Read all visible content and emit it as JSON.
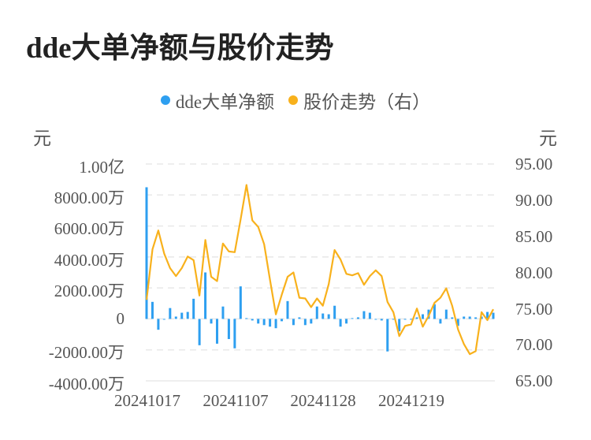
{
  "title": "dde大单净额与股价走势",
  "legend": [
    {
      "label": "dde大单净额",
      "color": "#2e9ff0"
    },
    {
      "label": "股价走势（右）",
      "color": "#f8b11c"
    }
  ],
  "axes": {
    "left_unit": "元",
    "right_unit": "元",
    "left_ticks": [
      "1.00亿",
      "8000.00万",
      "6000.00万",
      "4000.00万",
      "2000.00万",
      "0",
      "-2000.00万",
      "-4000.00万"
    ],
    "right_ticks": [
      "95.00",
      "90.00",
      "85.00",
      "80.00",
      "75.00",
      "70.00",
      "65.00"
    ],
    "x_ticks": [
      "20241017",
      "20241107",
      "20241128",
      "20241219"
    ]
  },
  "chart_data": {
    "type": "bar+line",
    "title": "dde大单净额与股价走势",
    "x_tick_labels": [
      "20241017",
      "20241107",
      "20241128",
      "20241219"
    ],
    "ylabel_left": "元",
    "ylabel_right": "元",
    "ylim_left": [
      -40000000,
      100000000
    ],
    "ylim_right": [
      65,
      95
    ],
    "grid": true,
    "legend_position": "top",
    "series": [
      {
        "name": "dde大单净额",
        "type": "bar",
        "axis": "left",
        "unit": "万元",
        "values": [
          8500,
          1100,
          -700,
          0,
          700,
          150,
          400,
          450,
          1300,
          -1700,
          3000,
          -300,
          -1600,
          800,
          -1300,
          -1900,
          2100,
          50,
          -100,
          -300,
          -400,
          -500,
          -600,
          -150,
          1150,
          -400,
          100,
          -400,
          -300,
          800,
          350,
          300,
          850,
          -500,
          -300,
          50,
          100,
          500,
          400,
          -50,
          -100,
          -2100,
          -50,
          -800,
          0,
          0,
          100,
          300,
          600,
          950,
          -300,
          600,
          100,
          -450,
          150,
          150,
          100,
          150,
          450,
          400
        ],
        "color": "#2e9ff0"
      },
      {
        "name": "股价走势（右）",
        "type": "line",
        "axis": "right",
        "values": [
          76.2,
          83.2,
          85.8,
          82.6,
          80.6,
          79.5,
          80.6,
          82.2,
          81.7,
          76.8,
          84.5,
          79.4,
          78.8,
          84.0,
          82.9,
          82.8,
          87.3,
          92.1,
          87.2,
          86.3,
          83.9,
          79.0,
          74.2,
          76.9,
          79.4,
          80.0,
          76.5,
          76.4,
          75.2,
          76.4,
          75.4,
          78.4,
          83.1,
          81.8,
          79.8,
          79.6,
          79.9,
          78.3,
          79.5,
          80.3,
          79.5,
          75.9,
          74.5,
          71.2,
          72.6,
          72.8,
          75.0,
          72.5,
          74.0,
          75.8,
          76.5,
          77.8,
          75.4,
          72.1,
          70.1,
          68.7,
          69.1,
          74.5,
          73.4,
          74.9
        ],
        "color": "#f8b11c"
      }
    ]
  }
}
